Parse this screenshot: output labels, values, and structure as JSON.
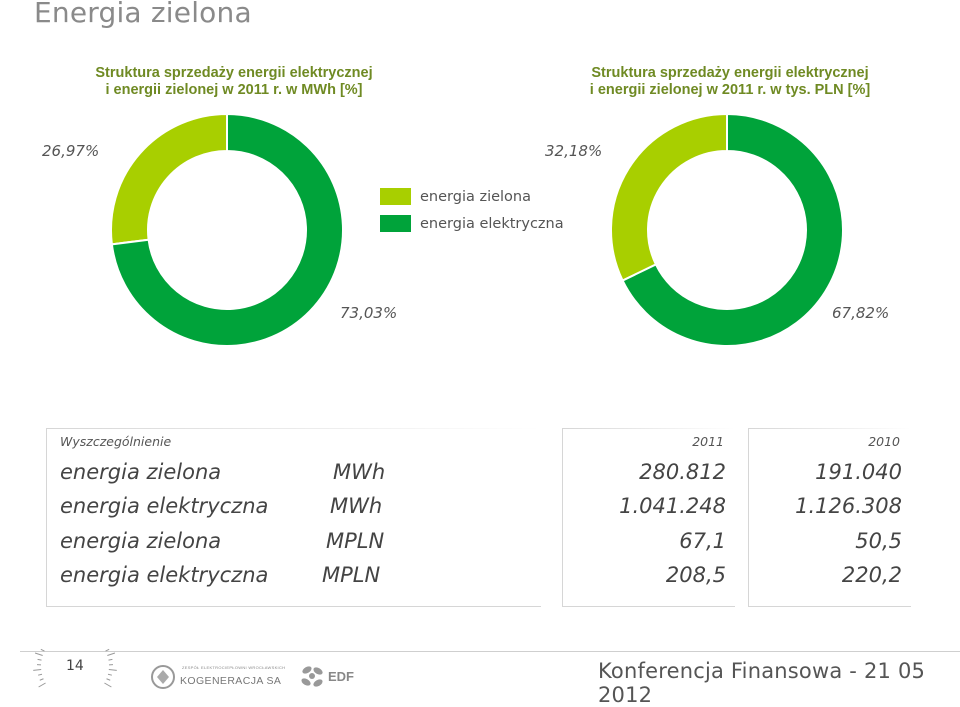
{
  "title": "Energia zielona",
  "charts": [
    {
      "title_line1": "Struktura sprzedaży energii elektrycznej",
      "title_line2": "i energii zielonej w 2011 r. w MWh [%]",
      "label_green": "26,97%",
      "label_elec": "73,03%"
    },
    {
      "title_line1": "Struktura sprzedaży energii elektrycznej",
      "title_line2": "i energii zielonej w 2011 r. w tys. PLN [%]",
      "label_green": "32,18%",
      "label_elec": "67,82%"
    }
  ],
  "legend": [
    {
      "label": "energia zielona",
      "color": "#a8cf00"
    },
    {
      "label": "energia elektryczna",
      "color": "#00a33a"
    }
  ],
  "chart_data": [
    {
      "type": "pie",
      "title": "Struktura sprzedaży energii elektrycznej i energii zielonej w 2011 r. w MWh [%]",
      "categories": [
        "energia zielona",
        "energia elektryczna"
      ],
      "values": [
        26.97,
        73.03
      ],
      "colors": [
        "#a8cf00",
        "#00a33a"
      ],
      "donut": true
    },
    {
      "type": "pie",
      "title": "Struktura sprzedaży energii elektrycznej i energii zielonej w 2011 r. w tys. PLN [%]",
      "categories": [
        "energia zielona",
        "energia elektryczna"
      ],
      "values": [
        32.18,
        67.82
      ],
      "colors": [
        "#a8cf00",
        "#00a33a"
      ],
      "donut": true
    }
  ],
  "table": {
    "header_label": "Wyszczególnienie",
    "header_2011": "2011",
    "header_2010": "2010",
    "rows": [
      {
        "name": "energia zielona",
        "unit": "MWh",
        "v2011": "280.812",
        "v2010": "191.040"
      },
      {
        "name": "energia elektryczna",
        "unit": "MWh",
        "v2011": "1.041.248",
        "v2010": "1.126.308"
      },
      {
        "name": "energia zielona",
        "unit": "MPLN",
        "v2011": "67,1",
        "v2010": "50,5"
      },
      {
        "name": "energia elektryczna",
        "unit": "MPLN",
        "v2011": "208,5",
        "v2010": "220,2"
      }
    ]
  },
  "footer": {
    "page_number": "14",
    "kogeneracja_small": "ZESPÓŁ ELEKTROCIEPŁOWNI WROCŁAWSKICH",
    "kogeneracja": "KOGENERACJA SA",
    "edf": "EDF",
    "conference": "Konferencja Finansowa - 21 05 2012"
  }
}
